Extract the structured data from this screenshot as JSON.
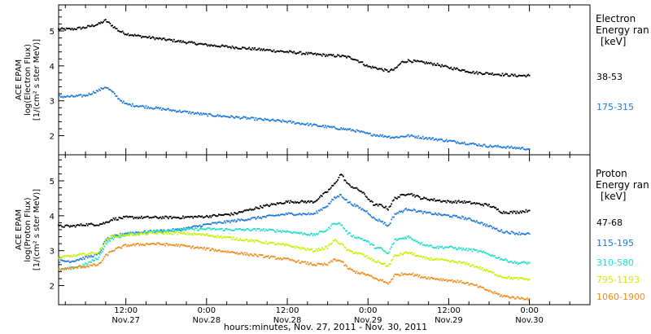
{
  "colors": {
    "black": "#000000",
    "blue": "#1e78dc",
    "cyan": "#22dcc8",
    "yellow": "#c8f000",
    "orange": "#f08c1e"
  },
  "xaxis": {
    "title": "hours:minutes, Nov. 27, 2011 - Nov. 30, 2011",
    "ticks": [
      {
        "time": "12:00",
        "date": "Nov.27",
        "t": 12
      },
      {
        "time": "0:00",
        "date": "Nov.28",
        "t": 24
      },
      {
        "time": "12:00",
        "date": "Nov.28",
        "t": 36
      },
      {
        "time": "0:00",
        "date": "Nov.29",
        "t": 48
      },
      {
        "time": "12:00",
        "date": "Nov.29",
        "t": 60
      },
      {
        "time": "0:00",
        "date": "Nov.30",
        "t": 72
      }
    ],
    "range_hours": [
      2,
      81
    ]
  },
  "chart_data": [
    {
      "type": "line",
      "panel": "electron",
      "ylabel": [
        "ACE EPAM",
        "log(Electron Flux)",
        "[1/(cm² s ster MeV)]"
      ],
      "ylim": [
        1.5,
        5.7
      ],
      "yticks": [
        "2",
        "3",
        "4",
        "5"
      ],
      "legend_title": [
        "Electron",
        "Energy ran",
        "[keV]"
      ],
      "series": [
        {
          "name": "38-53",
          "color": "black",
          "x": [
            2,
            4,
            6,
            8,
            9,
            10,
            11,
            12,
            14,
            18,
            24,
            30,
            36,
            42,
            44,
            45,
            46,
            47,
            48,
            49,
            50,
            51,
            52,
            53,
            54,
            56,
            58,
            60,
            62,
            64,
            66,
            68,
            70,
            72
          ],
          "y": [
            5.05,
            5.05,
            5.1,
            5.2,
            5.3,
            5.15,
            5.0,
            4.92,
            4.85,
            4.75,
            4.6,
            4.5,
            4.4,
            4.3,
            4.28,
            4.25,
            4.2,
            4.1,
            3.98,
            3.95,
            3.9,
            3.85,
            3.9,
            4.1,
            4.15,
            4.1,
            4.05,
            3.95,
            3.88,
            3.8,
            3.78,
            3.75,
            3.72,
            3.72
          ]
        },
        {
          "name": "175-315",
          "color": "blue",
          "x": [
            2,
            4,
            6,
            8,
            9,
            10,
            11,
            12,
            14,
            18,
            24,
            30,
            36,
            42,
            44,
            46,
            48,
            50,
            52,
            54,
            56,
            58,
            60,
            62,
            64,
            66,
            68,
            70,
            72
          ],
          "y": [
            3.12,
            3.12,
            3.15,
            3.3,
            3.4,
            3.25,
            3.05,
            2.9,
            2.85,
            2.75,
            2.6,
            2.5,
            2.4,
            2.25,
            2.2,
            2.15,
            2.05,
            2.0,
            1.95,
            2.0,
            1.95,
            1.9,
            1.85,
            1.8,
            1.75,
            1.7,
            1.68,
            1.65,
            1.62
          ]
        }
      ]
    },
    {
      "type": "line",
      "panel": "proton",
      "ylabel": [
        "ACE EPAM",
        "log(Proton Flux)",
        "[1/(cm² s ster MeV)]"
      ],
      "ylim": [
        1.5,
        5.7
      ],
      "yticks": [
        "2",
        "3",
        "4",
        "5"
      ],
      "legend_title": [
        "Proton",
        "Energy ran",
        "[keV]"
      ],
      "series": [
        {
          "name": "47-68",
          "color": "black",
          "x": [
            2,
            4,
            6,
            8,
            9,
            10,
            12,
            16,
            20,
            24,
            28,
            32,
            36,
            40,
            42,
            43,
            44,
            45,
            46,
            47,
            48,
            49,
            50,
            51,
            52,
            54,
            56,
            58,
            60,
            62,
            64,
            66,
            68,
            70,
            72
          ],
          "y": [
            3.7,
            3.7,
            3.75,
            3.75,
            3.8,
            3.9,
            3.95,
            3.95,
            3.95,
            3.98,
            4.05,
            4.25,
            4.4,
            4.4,
            4.7,
            4.9,
            5.2,
            4.9,
            4.8,
            4.7,
            4.5,
            4.3,
            4.3,
            4.2,
            4.5,
            4.65,
            4.5,
            4.45,
            4.4,
            4.4,
            4.35,
            4.3,
            4.1,
            4.1,
            4.15
          ]
        },
        {
          "name": "115-195",
          "color": "blue",
          "x": [
            2,
            4,
            6,
            8,
            9,
            10,
            12,
            16,
            20,
            24,
            28,
            32,
            36,
            40,
            42,
            43,
            44,
            45,
            46,
            47,
            48,
            49,
            50,
            51,
            52,
            54,
            56,
            58,
            60,
            62,
            64,
            66,
            68,
            70,
            72
          ],
          "y": [
            2.7,
            2.7,
            2.8,
            2.9,
            3.3,
            3.4,
            3.5,
            3.55,
            3.6,
            3.75,
            3.85,
            3.95,
            4.05,
            4.05,
            4.3,
            4.5,
            4.6,
            4.4,
            4.3,
            4.2,
            4.1,
            3.9,
            3.85,
            3.7,
            4.05,
            4.2,
            4.1,
            4.05,
            4.0,
            3.95,
            3.85,
            3.7,
            3.55,
            3.5,
            3.48
          ]
        },
        {
          "name": "310-580",
          "color": "cyan",
          "x": [
            2,
            4,
            6,
            8,
            9,
            10,
            12,
            16,
            20,
            24,
            28,
            32,
            36,
            40,
            42,
            43,
            44,
            45,
            46,
            47,
            48,
            49,
            50,
            51,
            52,
            54,
            56,
            58,
            60,
            62,
            64,
            66,
            68,
            70,
            72
          ],
          "y": [
            2.45,
            2.5,
            2.6,
            2.8,
            3.2,
            3.35,
            3.45,
            3.55,
            3.6,
            3.62,
            3.6,
            3.6,
            3.55,
            3.45,
            3.6,
            3.8,
            3.75,
            3.5,
            3.4,
            3.35,
            3.25,
            3.1,
            3.05,
            2.9,
            3.3,
            3.4,
            3.2,
            3.1,
            3.1,
            3.05,
            3.0,
            2.9,
            2.75,
            2.65,
            2.65
          ]
        },
        {
          "name": "795-1193",
          "color": "yellow",
          "x": [
            2,
            4,
            6,
            8,
            9,
            10,
            12,
            16,
            20,
            24,
            28,
            32,
            36,
            40,
            42,
            43,
            44,
            45,
            46,
            47,
            48,
            49,
            50,
            51,
            52,
            54,
            56,
            58,
            60,
            62,
            64,
            66,
            68,
            70,
            72
          ],
          "y": [
            2.8,
            2.85,
            2.9,
            2.95,
            3.3,
            3.4,
            3.45,
            3.5,
            3.5,
            3.45,
            3.35,
            3.25,
            3.15,
            3.0,
            3.1,
            3.3,
            3.2,
            3.0,
            2.95,
            2.9,
            2.8,
            2.7,
            2.65,
            2.55,
            2.85,
            2.95,
            2.8,
            2.75,
            2.7,
            2.65,
            2.55,
            2.4,
            2.25,
            2.2,
            2.18
          ]
        },
        {
          "name": "1060-1900",
          "color": "orange",
          "x": [
            2,
            4,
            6,
            8,
            9,
            10,
            12,
            16,
            20,
            24,
            28,
            32,
            36,
            40,
            42,
            43,
            44,
            45,
            46,
            47,
            48,
            49,
            50,
            51,
            52,
            54,
            56,
            58,
            60,
            62,
            64,
            66,
            68,
            70,
            72
          ],
          "y": [
            2.45,
            2.5,
            2.55,
            2.6,
            2.85,
            3.0,
            3.15,
            3.2,
            3.15,
            3.05,
            2.95,
            2.85,
            2.75,
            2.6,
            2.6,
            2.75,
            2.7,
            2.5,
            2.4,
            2.35,
            2.3,
            2.2,
            2.15,
            2.05,
            2.3,
            2.35,
            2.25,
            2.2,
            2.15,
            2.1,
            2.0,
            1.85,
            1.7,
            1.65,
            1.62
          ]
        }
      ]
    }
  ]
}
